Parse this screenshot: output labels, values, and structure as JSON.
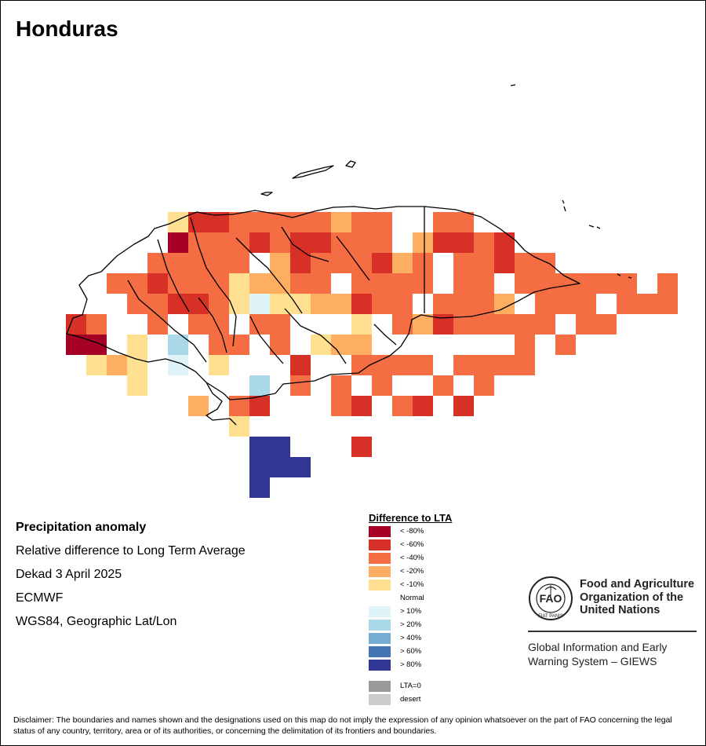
{
  "title": "Honduras",
  "info": {
    "heading": "Precipitation anomaly",
    "subheading": "Relative difference to Long Term Average",
    "period": "Dekad 3 April 2025",
    "source": "ECMWF",
    "projection": "WGS84, Geographic Lat/Lon"
  },
  "legend": {
    "title": "Difference to LTA",
    "items": [
      {
        "label": "< -80%",
        "color": "#a50026"
      },
      {
        "label": "< -60%",
        "color": "#d73027"
      },
      {
        "label": "< -40%",
        "color": "#f46d43"
      },
      {
        "label": "< -20%",
        "color": "#fdae61"
      },
      {
        "label": "< -10%",
        "color": "#fee090"
      },
      {
        "label": "Normal",
        "color": "#ffffff"
      },
      {
        "label": "> 10%",
        "color": "#e0f3f8"
      },
      {
        "label": "> 20%",
        "color": "#abd9e9"
      },
      {
        "label": "> 40%",
        "color": "#74add1"
      },
      {
        "label": "> 60%",
        "color": "#4575b4"
      },
      {
        "label": "> 80%",
        "color": "#313695"
      },
      {
        "label": "LTA=0",
        "color": "#999999"
      },
      {
        "label": "desert",
        "color": "#cccccc"
      }
    ]
  },
  "org": {
    "name": "Food and Agriculture Organization of the United Nations",
    "program": "Global Information and Early Warning System – GIEWS"
  },
  "disclaimer": "Disclaimer: The boundaries and names shown and the designations used on this map do not imply the expression of any opinion whatsoever on the part of FAO concerning the legal status of any country, territory, area or of its authorities, or concerning the delimitation of its frontiers and boundaries.",
  "grid_rows": [
    "",
    "",
    "",
    "",
    "",
    "",
    "",
    "",
    "",
    "",
    "                  22223343443334",
    "                 13232232263333",
    "                1433213214343433",
    "                4332343323233343",
    "            2322322233333333",
    "            23333223233331",
    "",
    "",
    "",
    "",
    "",
    "",
    ""
  ]
}
